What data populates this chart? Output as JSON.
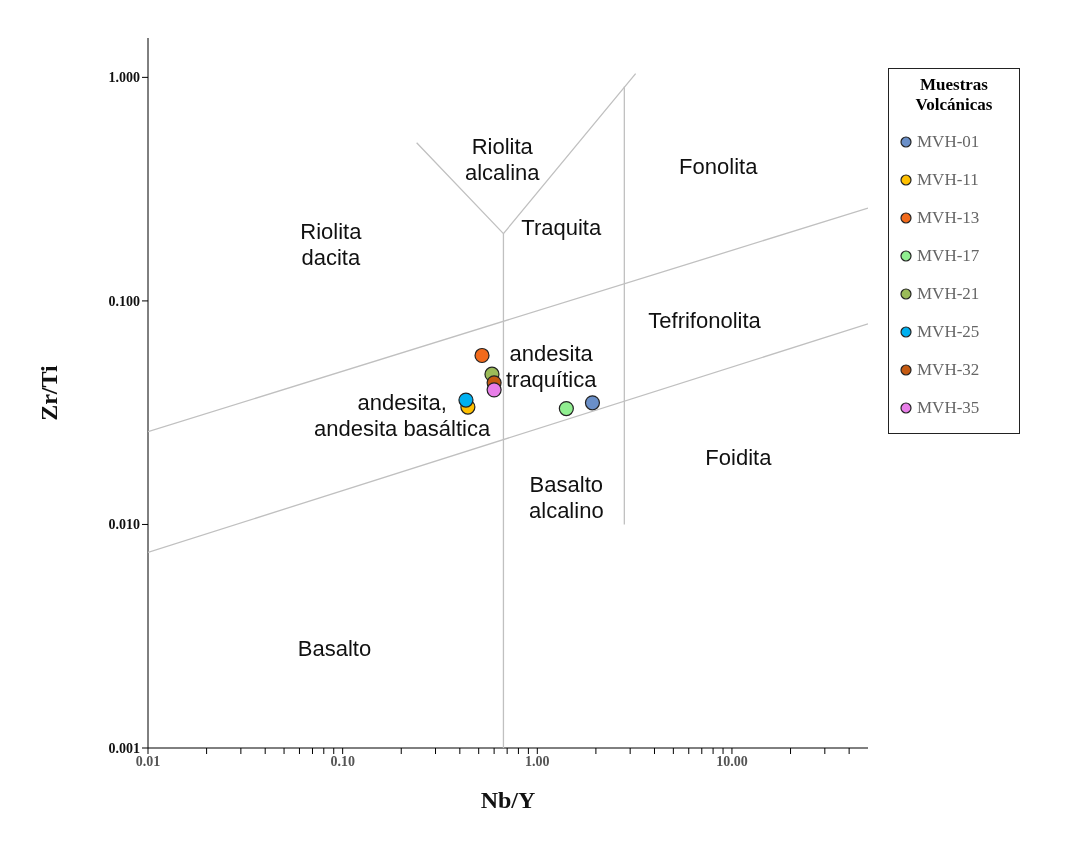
{
  "chart_data": {
    "type": "scatter",
    "xlabel": "Nb/Y",
    "ylabel": "Zr/Ti",
    "legend_title": "Muestras Volcánicas",
    "log": "xy",
    "legend": "right",
    "xlim": [
      0.01,
      50
    ],
    "ylim": [
      0.001,
      1.5
    ],
    "xticks": [
      {
        "value": 0.01,
        "label": "0.01"
      },
      {
        "value": 0.02,
        "label": null
      },
      {
        "value": 0.03,
        "label": null
      },
      {
        "value": 0.04,
        "label": null
      },
      {
        "value": 0.05,
        "label": null
      },
      {
        "value": 0.06,
        "label": null
      },
      {
        "value": 0.07,
        "label": null
      },
      {
        "value": 0.08,
        "label": null
      },
      {
        "value": 0.09,
        "label": null
      },
      {
        "value": 0.1,
        "label": "0.10"
      },
      {
        "value": 0.2,
        "label": null
      },
      {
        "value": 0.3,
        "label": null
      },
      {
        "value": 0.4,
        "label": null
      },
      {
        "value": 0.5,
        "label": null
      },
      {
        "value": 0.6,
        "label": null
      },
      {
        "value": 0.7,
        "label": null
      },
      {
        "value": 0.8,
        "label": null
      },
      {
        "value": 0.9,
        "label": null
      },
      {
        "value": 1,
        "label": "1.00"
      },
      {
        "value": 2,
        "label": null
      },
      {
        "value": 3,
        "label": null
      },
      {
        "value": 4,
        "label": null
      },
      {
        "value": 5,
        "label": null
      },
      {
        "value": 6,
        "label": null
      },
      {
        "value": 7,
        "label": null
      },
      {
        "value": 8,
        "label": null
      },
      {
        "value": 9,
        "label": null
      },
      {
        "value": 10,
        "label": "10.00"
      },
      {
        "value": 20,
        "label": null
      },
      {
        "value": 30,
        "label": null
      },
      {
        "value": 40,
        "label": null
      }
    ],
    "yticks": [
      {
        "value": 0.001,
        "label": "0.001"
      },
      {
        "value": 0.01,
        "label": "0.010"
      },
      {
        "value": 0.1,
        "label": "0.100"
      },
      {
        "value": 1,
        "label": "1.000"
      }
    ],
    "series": [
      {
        "name": "MVH-01",
        "color": "#6a8fc8",
        "marker": "circle",
        "x": [
          1.92
        ],
        "values": [
          0.035
        ]
      },
      {
        "name": "MVH-11",
        "color": "#ffc000",
        "marker": "circle",
        "x": [
          0.44
        ],
        "values": [
          0.0335
        ]
      },
      {
        "name": "MVH-13",
        "color": "#f26a1b",
        "marker": "circle",
        "x": [
          0.52
        ],
        "values": [
          0.057
        ]
      },
      {
        "name": "MVH-17",
        "color": "#90ee90",
        "marker": "circle",
        "x": [
          1.41
        ],
        "values": [
          0.033
        ]
      },
      {
        "name": "MVH-21",
        "color": "#9bbb59",
        "marker": "circle",
        "x": [
          0.585
        ],
        "values": [
          0.047
        ]
      },
      {
        "name": "MVH-25",
        "color": "#00b0f0",
        "marker": "circle",
        "x": [
          0.43
        ],
        "values": [
          0.036
        ]
      },
      {
        "name": "MVH-32",
        "color": "#c55a11",
        "marker": "circle",
        "x": [
          0.6
        ],
        "values": [
          0.043
        ]
      },
      {
        "name": "MVH-35",
        "color": "#e87ee8",
        "marker": "circle",
        "x": [
          0.6
        ],
        "values": [
          0.04
        ]
      },
      {
        "type": "line",
        "color": "#c0c0c0",
        "marker": "none",
        "x": [
          0.01,
          50
        ],
        "values": [
          0.026,
          0.26
        ]
      },
      {
        "type": "line",
        "color": "#c0c0c0",
        "marker": "none",
        "x": [
          0.01,
          50
        ],
        "values": [
          0.0075,
          0.079
        ]
      },
      {
        "type": "line",
        "color": "#c0c0c0",
        "marker": "none",
        "x": [
          0.67,
          0.67
        ],
        "values": [
          0.001,
          0.2
        ]
      },
      {
        "type": "line",
        "color": "#c0c0c0",
        "marker": "none",
        "x": [
          0.24,
          0.67,
          3.2
        ],
        "values": [
          0.51,
          0.2,
          1.04
        ]
      },
      {
        "type": "line",
        "color": "#c0c0c0",
        "marker": "none",
        "x": [
          2.8,
          2.8
        ],
        "values": [
          0.91,
          0.01
        ]
      }
    ],
    "annotations": [
      "Riolita\nalcalina",
      "Riolita\ndacita",
      "Fonolita",
      "Traquita",
      "Tefrifonolita",
      "andesita\ntraquítica",
      "andesita,\nandesita basáltica",
      "Basalto\nalcalino",
      "Foidita",
      "Basalto"
    ]
  }
}
